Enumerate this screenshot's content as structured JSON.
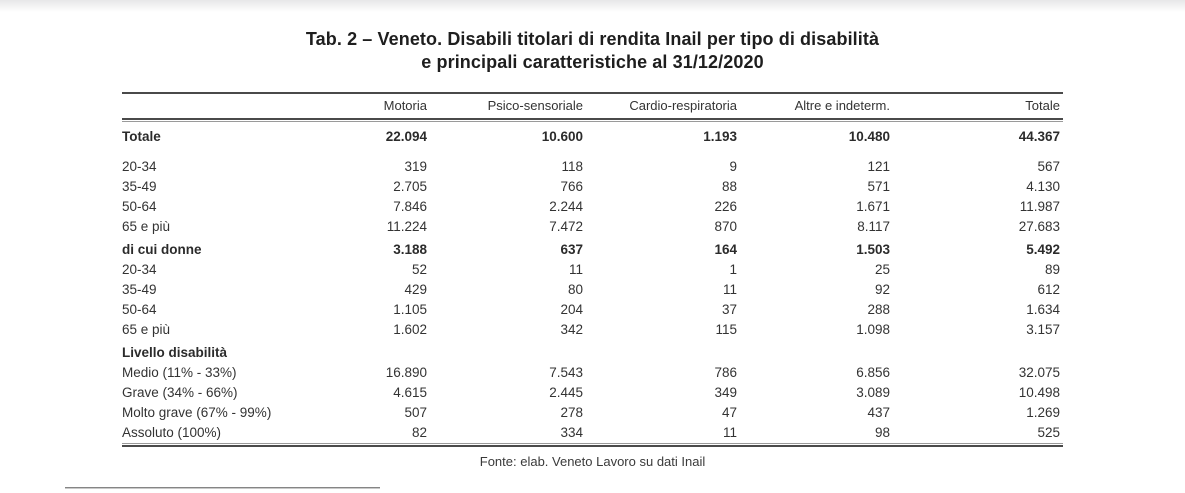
{
  "title": {
    "line1": "Tab. 2 – Veneto. Disabili titolari di rendita Inail per tipo di disabilità",
    "line2": "e principali caratteristiche al 31/12/2020"
  },
  "table": {
    "columns": [
      "Motoria",
      "Psico-sensoriale",
      "Cardio-respiratoria",
      "Altre e indeterm.",
      "Totale"
    ],
    "sections": [
      {
        "name": "totale",
        "rows": [
          {
            "label": "Totale",
            "bold": true,
            "values": [
              "22.094",
              "10.600",
              "1.193",
              "10.480",
              "44.367"
            ]
          }
        ]
      },
      {
        "name": "eta",
        "rows": [
          {
            "label": "20-34",
            "bold": false,
            "values": [
              "319",
              "118",
              "9",
              "121",
              "567"
            ]
          },
          {
            "label": "35-49",
            "bold": false,
            "values": [
              "2.705",
              "766",
              "88",
              "571",
              "4.130"
            ]
          },
          {
            "label": "50-64",
            "bold": false,
            "values": [
              "7.846",
              "2.244",
              "226",
              "1.671",
              "11.987"
            ]
          },
          {
            "label": "65 e più",
            "bold": false,
            "values": [
              "11.224",
              "7.472",
              "870",
              "8.117",
              "27.683"
            ]
          }
        ]
      },
      {
        "name": "donne",
        "rows": [
          {
            "label": "di cui donne",
            "bold": true,
            "values": [
              "3.188",
              "637",
              "164",
              "1.503",
              "5.492"
            ]
          },
          {
            "label": "20-34",
            "bold": false,
            "values": [
              "52",
              "11",
              "1",
              "25",
              "89"
            ]
          },
          {
            "label": "35-49",
            "bold": false,
            "values": [
              "429",
              "80",
              "11",
              "92",
              "612"
            ]
          },
          {
            "label": "50-64",
            "bold": false,
            "values": [
              "1.105",
              "204",
              "37",
              "288",
              "1.634"
            ]
          },
          {
            "label": "65 e più",
            "bold": false,
            "values": [
              "1.602",
              "342",
              "115",
              "1.098",
              "3.157"
            ]
          }
        ]
      },
      {
        "name": "livello",
        "rows": [
          {
            "label": "Livello disabilità",
            "bold": true,
            "values": [
              "",
              "",
              "",
              "",
              ""
            ]
          },
          {
            "label": "Medio (11% - 33%)",
            "bold": false,
            "values": [
              "16.890",
              "7.543",
              "786",
              "6.856",
              "32.075"
            ]
          },
          {
            "label": "Grave (34% - 66%)",
            "bold": false,
            "values": [
              "4.615",
              "2.445",
              "349",
              "3.089",
              "10.498"
            ]
          },
          {
            "label": "Molto grave (67% - 99%)",
            "bold": false,
            "values": [
              "507",
              "278",
              "47",
              "437",
              "1.269"
            ]
          },
          {
            "label": "Assoluto (100%)",
            "bold": false,
            "values": [
              "82",
              "334",
              "11",
              "98",
              "525"
            ]
          }
        ]
      }
    ]
  },
  "footer": {
    "source": "Fonte: elab. Veneto Lavoro su dati Inail"
  }
}
